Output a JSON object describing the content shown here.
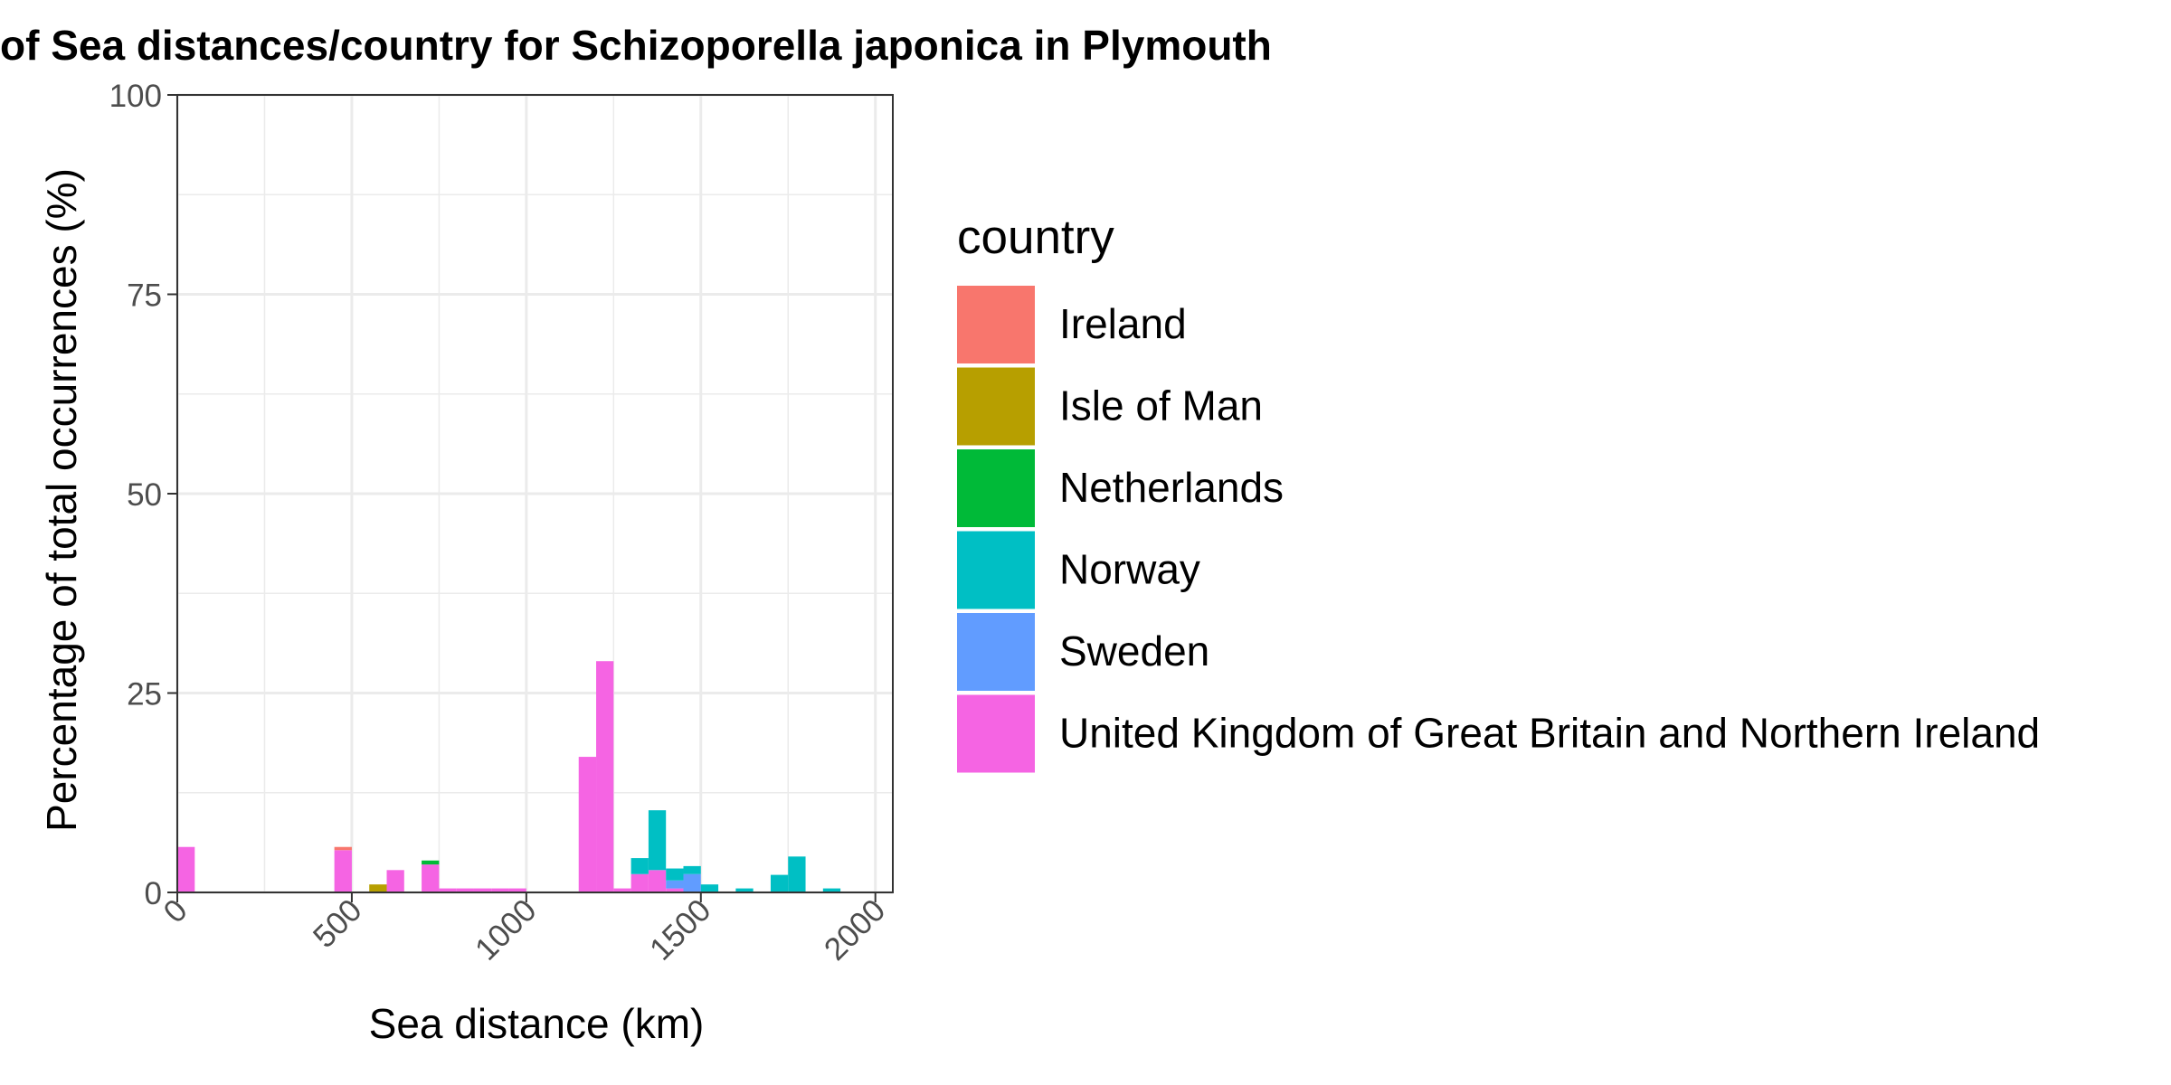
{
  "chart_data": {
    "type": "bar",
    "stacked": true,
    "title": "of Sea distances/country for Schizoporella japonica in Plymouth",
    "xlabel": "Sea distance (km)",
    "ylabel": "Percentage of total occurrences (%)",
    "xlim": [
      0,
      2050
    ],
    "ylim": [
      0,
      100
    ],
    "x_ticks": [
      "0",
      "500",
      "1000",
      "1500",
      "2000"
    ],
    "y_ticks": [
      "0",
      "25",
      "50",
      "75",
      "100"
    ],
    "grid": true,
    "bin_width": 50,
    "legend": {
      "title": "country",
      "position": "right"
    },
    "series": [
      {
        "name": "Ireland",
        "color": "#F8766D",
        "bins": [
          [
            475,
            0.4
          ]
        ]
      },
      {
        "name": "Isle of Man",
        "color": "#B79F00",
        "bins": [
          [
            575,
            1.0
          ]
        ]
      },
      {
        "name": "Netherlands",
        "color": "#00BA38",
        "bins": [
          [
            725,
            0.5
          ]
        ]
      },
      {
        "name": "Norway",
        "color": "#00BFC4",
        "bins": [
          [
            1325,
            2.0
          ],
          [
            1375,
            7.5
          ],
          [
            1425,
            1.5
          ],
          [
            1475,
            1.0
          ],
          [
            1525,
            1.0
          ],
          [
            1625,
            0.5
          ],
          [
            1725,
            2.2
          ],
          [
            1775,
            4.5
          ],
          [
            1875,
            0.5
          ]
        ]
      },
      {
        "name": "Sweden",
        "color": "#619CFF",
        "bins": [
          [
            1425,
            1.0
          ],
          [
            1475,
            2.3
          ]
        ]
      },
      {
        "name": "United Kingdom of Great Britain and Northern Ireland",
        "color": "#F564E3",
        "bins": [
          [
            25,
            5.7
          ],
          [
            475,
            5.3
          ],
          [
            625,
            2.8
          ],
          [
            725,
            3.5
          ],
          [
            775,
            0.5
          ],
          [
            825,
            0.5
          ],
          [
            875,
            0.5
          ],
          [
            925,
            0.5
          ],
          [
            975,
            0.5
          ],
          [
            1175,
            17.0
          ],
          [
            1225,
            29.0
          ],
          [
            1275,
            0.5
          ],
          [
            1325,
            2.3
          ],
          [
            1375,
            2.8
          ],
          [
            1425,
            0.5
          ]
        ]
      }
    ]
  }
}
